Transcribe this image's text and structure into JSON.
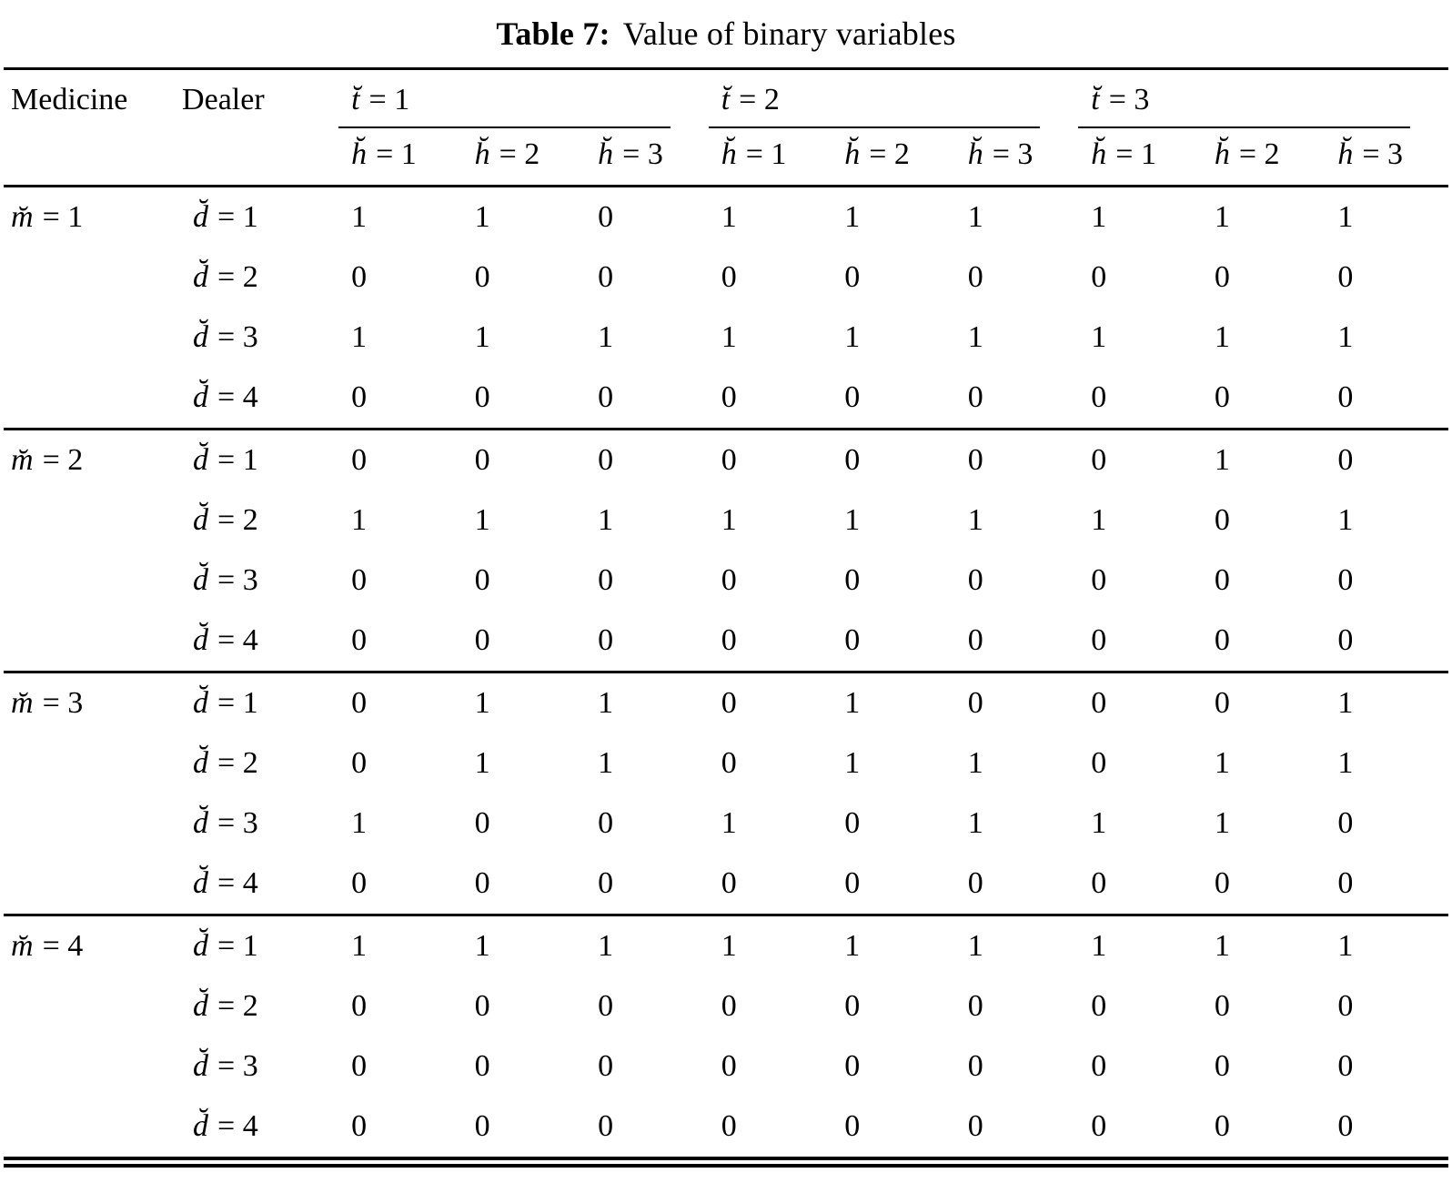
{
  "title": {
    "number": "Table 7:",
    "caption": "Value of binary variables"
  },
  "chart_data": {
    "type": "table",
    "title": "Table 7: Value of binary variables",
    "col_headers": {
      "medicine": "Medicine",
      "dealer": "Dealer",
      "t_groups": [
        {
          "var": "t̆",
          "eq": "= 1"
        },
        {
          "var": "t̆",
          "eq": "= 2"
        },
        {
          "var": "t̆",
          "eq": "= 3"
        }
      ],
      "h_subcols": [
        {
          "var": "h̆",
          "eq": "= 1"
        },
        {
          "var": "h̆",
          "eq": "= 2"
        },
        {
          "var": "h̆",
          "eq": "= 3"
        }
      ]
    },
    "blocks": [
      {
        "medicine": {
          "var": "m̆",
          "eq": "= 1"
        },
        "rows": [
          {
            "dealer": {
              "var": "d̆",
              "eq": "= 1"
            },
            "values": [
              1,
              1,
              0,
              1,
              1,
              1,
              1,
              1,
              1
            ]
          },
          {
            "dealer": {
              "var": "d̆",
              "eq": "= 2"
            },
            "values": [
              0,
              0,
              0,
              0,
              0,
              0,
              0,
              0,
              0
            ]
          },
          {
            "dealer": {
              "var": "d̆",
              "eq": "= 3"
            },
            "values": [
              1,
              1,
              1,
              1,
              1,
              1,
              1,
              1,
              1
            ]
          },
          {
            "dealer": {
              "var": "d̆",
              "eq": "= 4"
            },
            "values": [
              0,
              0,
              0,
              0,
              0,
              0,
              0,
              0,
              0
            ]
          }
        ]
      },
      {
        "medicine": {
          "var": "m̆",
          "eq": "= 2"
        },
        "rows": [
          {
            "dealer": {
              "var": "d̆",
              "eq": "= 1"
            },
            "values": [
              0,
              0,
              0,
              0,
              0,
              0,
              0,
              1,
              0
            ]
          },
          {
            "dealer": {
              "var": "d̆",
              "eq": "= 2"
            },
            "values": [
              1,
              1,
              1,
              1,
              1,
              1,
              1,
              0,
              1
            ]
          },
          {
            "dealer": {
              "var": "d̆",
              "eq": "= 3"
            },
            "values": [
              0,
              0,
              0,
              0,
              0,
              0,
              0,
              0,
              0
            ]
          },
          {
            "dealer": {
              "var": "d̆",
              "eq": "= 4"
            },
            "values": [
              0,
              0,
              0,
              0,
              0,
              0,
              0,
              0,
              0
            ]
          }
        ]
      },
      {
        "medicine": {
          "var": "m̆",
          "eq": "= 3"
        },
        "rows": [
          {
            "dealer": {
              "var": "d̆",
              "eq": "= 1"
            },
            "values": [
              0,
              1,
              1,
              0,
              1,
              0,
              0,
              0,
              1
            ]
          },
          {
            "dealer": {
              "var": "d̆",
              "eq": "= 2"
            },
            "values": [
              0,
              1,
              1,
              0,
              1,
              1,
              0,
              1,
              1
            ]
          },
          {
            "dealer": {
              "var": "d̆",
              "eq": "= 3"
            },
            "values": [
              1,
              0,
              0,
              1,
              0,
              1,
              1,
              1,
              0
            ]
          },
          {
            "dealer": {
              "var": "d̆",
              "eq": "= 4"
            },
            "values": [
              0,
              0,
              0,
              0,
              0,
              0,
              0,
              0,
              0
            ]
          }
        ]
      },
      {
        "medicine": {
          "var": "m̆",
          "eq": "= 4"
        },
        "rows": [
          {
            "dealer": {
              "var": "d̆",
              "eq": "= 1"
            },
            "values": [
              1,
              1,
              1,
              1,
              1,
              1,
              1,
              1,
              1
            ]
          },
          {
            "dealer": {
              "var": "d̆",
              "eq": "= 2"
            },
            "values": [
              0,
              0,
              0,
              0,
              0,
              0,
              0,
              0,
              0
            ]
          },
          {
            "dealer": {
              "var": "d̆",
              "eq": "= 3"
            },
            "values": [
              0,
              0,
              0,
              0,
              0,
              0,
              0,
              0,
              0
            ]
          },
          {
            "dealer": {
              "var": "d̆",
              "eq": "= 4"
            },
            "values": [
              0,
              0,
              0,
              0,
              0,
              0,
              0,
              0,
              0
            ]
          }
        ]
      }
    ]
  }
}
